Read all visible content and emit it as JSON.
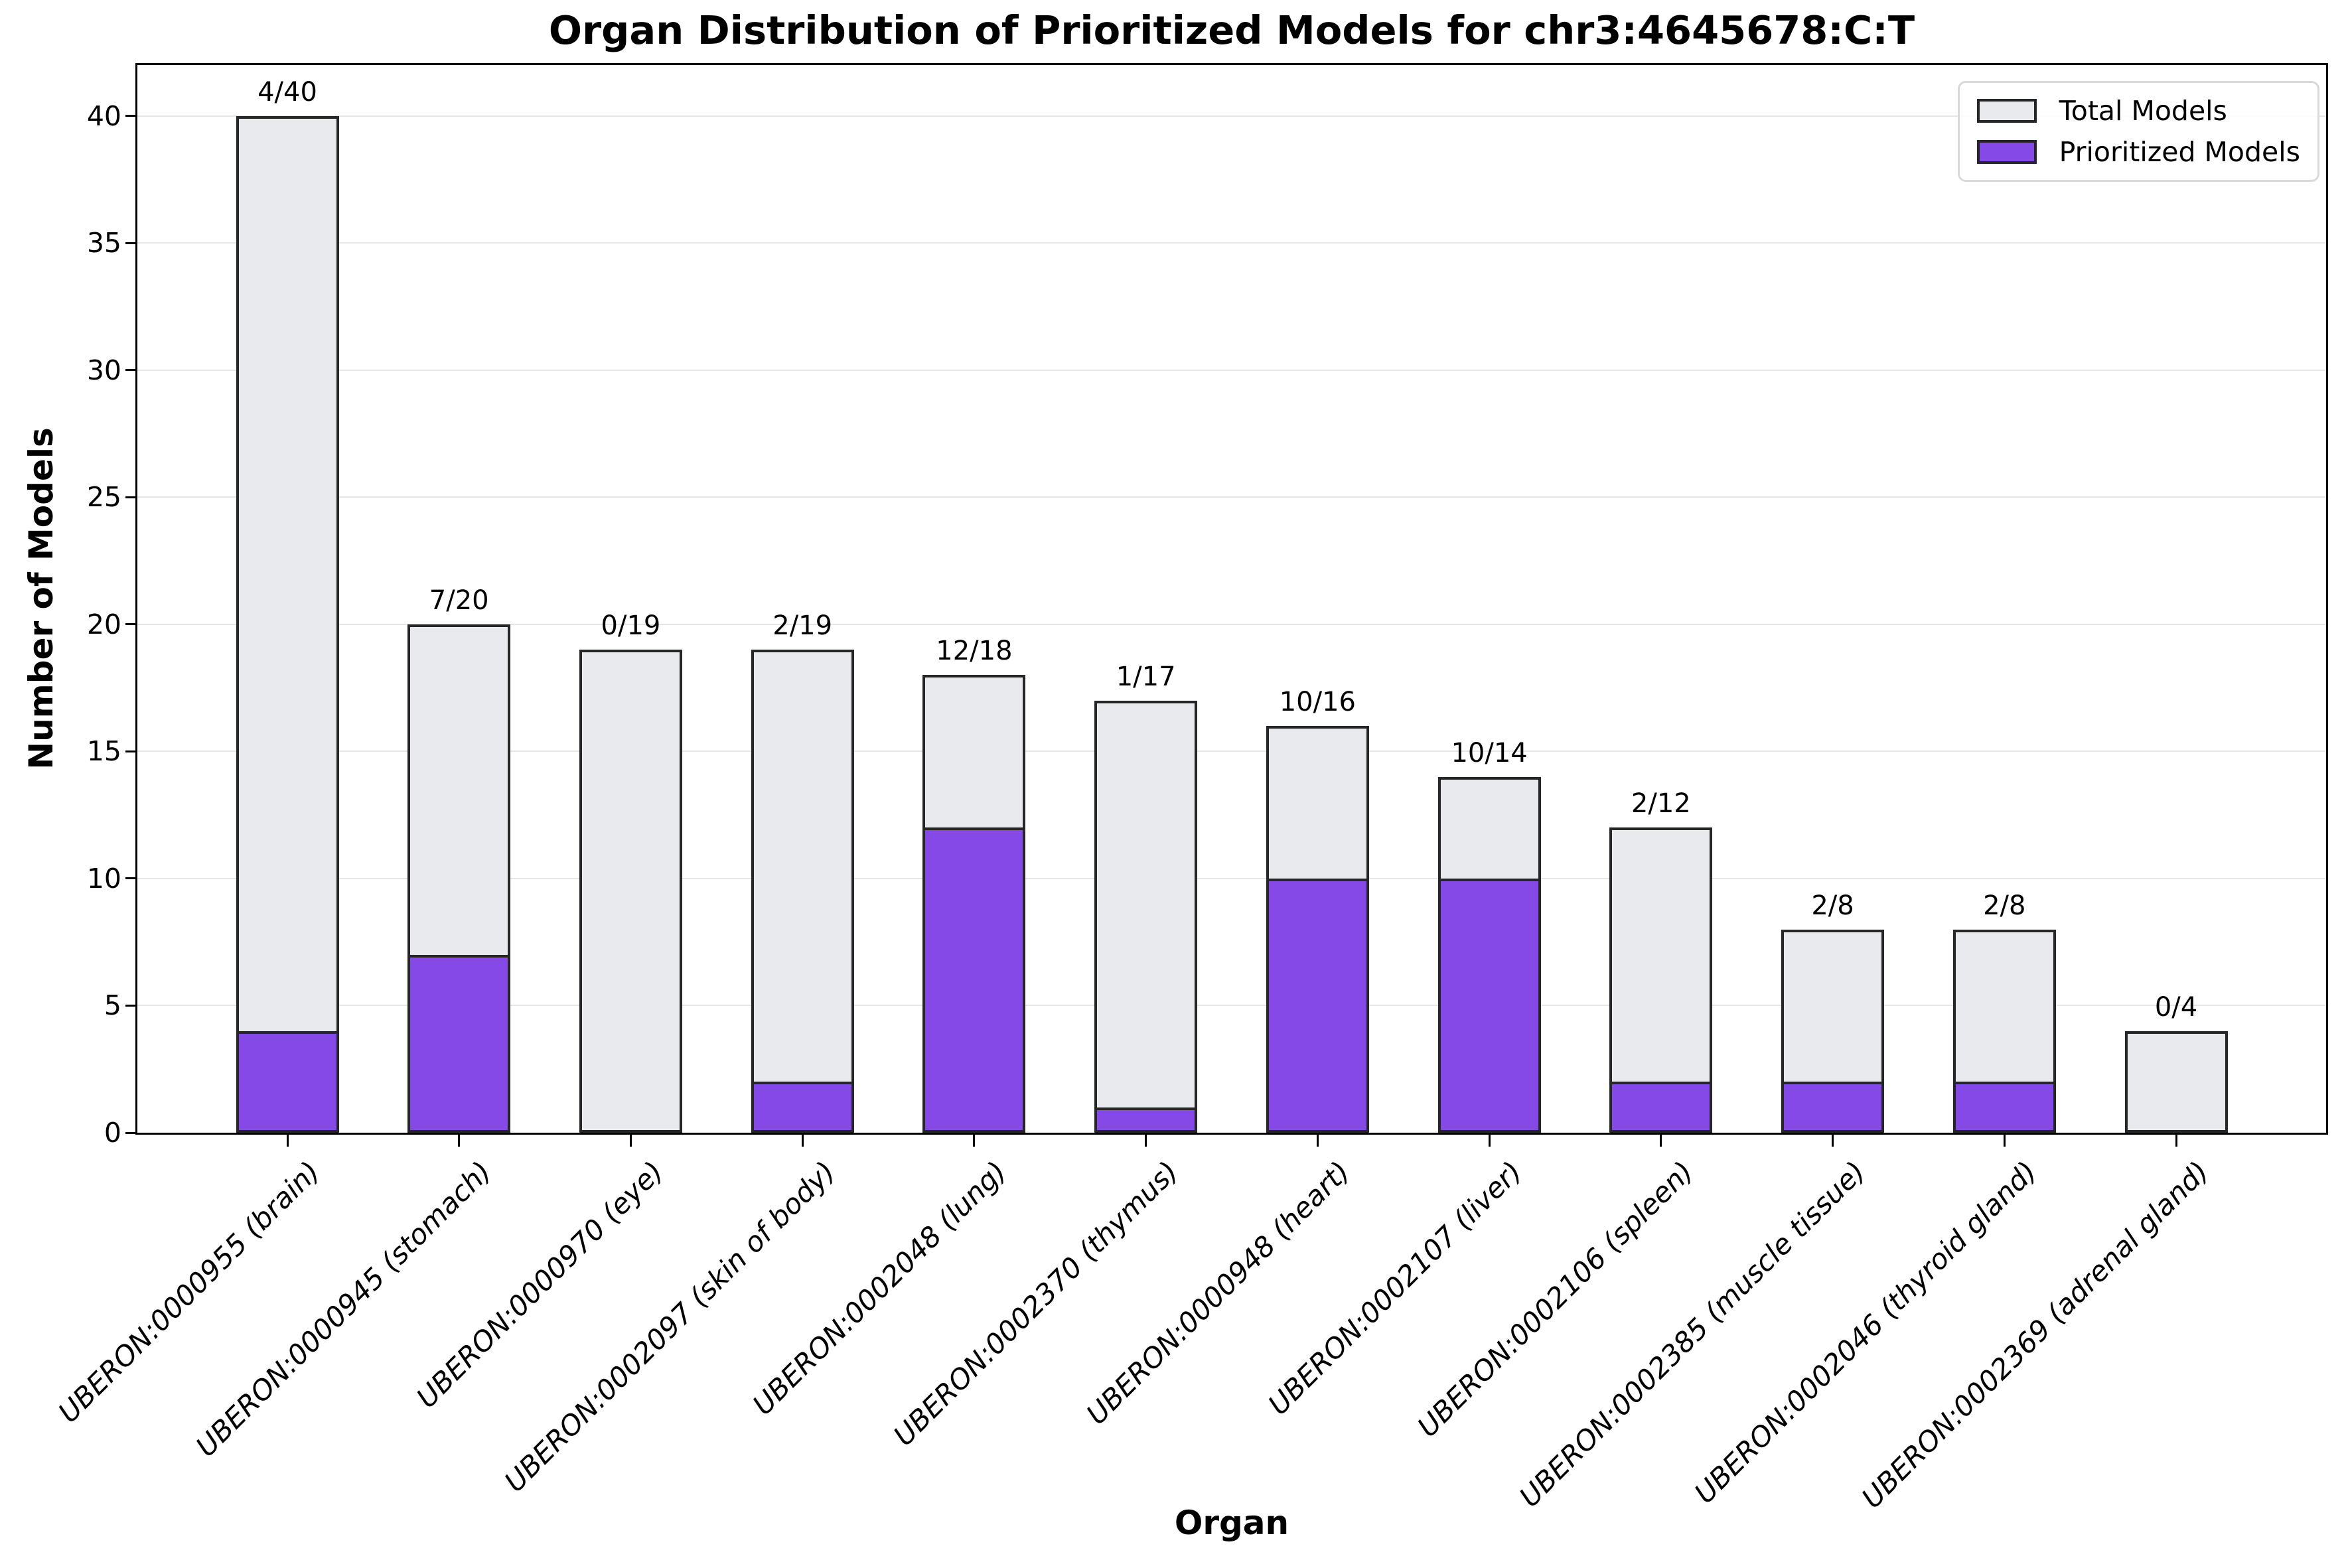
{
  "chart_data": {
    "type": "bar",
    "title": "Organ Distribution of Prioritized Models for chr3:4645678:C:T",
    "xlabel": "Organ",
    "ylabel": "Number of Models",
    "ylim": [
      0,
      42
    ],
    "yticks": [
      0,
      5,
      10,
      15,
      20,
      25,
      30,
      35,
      40
    ],
    "grid": "horizontal",
    "legend_position": "upper-right",
    "categories": [
      "UBERON:0000955 (brain)",
      "UBERON:0000945 (stomach)",
      "UBERON:0000970 (eye)",
      "UBERON:0002097 (skin of body)",
      "UBERON:0002048 (lung)",
      "UBERON:0002370 (thymus)",
      "UBERON:0000948 (heart)",
      "UBERON:0002107 (liver)",
      "UBERON:0002106 (spleen)",
      "UBERON:0002385 (muscle tissue)",
      "UBERON:0002046 (thyroid gland)",
      "UBERON:0002369 (adrenal gland)"
    ],
    "series": [
      {
        "name": "Total Models",
        "color": "#e8eaed",
        "values": [
          40,
          20,
          19,
          19,
          18,
          17,
          16,
          14,
          12,
          8,
          8,
          4
        ]
      },
      {
        "name": "Prioritized Models",
        "color": "#8549e8",
        "values": [
          4,
          7,
          0,
          2,
          12,
          1,
          10,
          10,
          2,
          2,
          2,
          0
        ]
      }
    ],
    "annotations": [
      "4/40",
      "7/20",
      "0/19",
      "2/19",
      "12/18",
      "1/17",
      "10/16",
      "10/14",
      "2/12",
      "2/8",
      "2/8",
      "0/4"
    ],
    "bar_edge_color": "#262626",
    "grid_color": "#e6e6e6"
  }
}
